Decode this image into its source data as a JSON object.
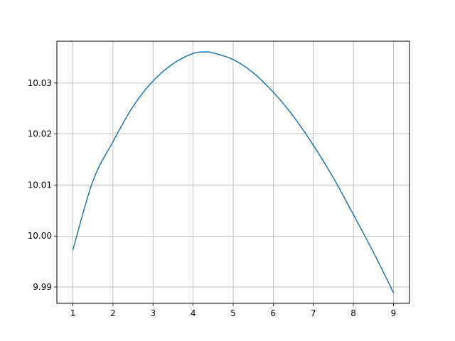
{
  "chart_data": {
    "type": "line",
    "title": "",
    "xlabel": "",
    "ylabel": "",
    "xlim": [
      0.6,
      9.4
    ],
    "ylim": [
      9.9868,
      10.0382
    ],
    "grid": true,
    "x_ticks": [
      1,
      2,
      3,
      4,
      5,
      6,
      7,
      8,
      9
    ],
    "x_tick_labels": [
      "1",
      "2",
      "3",
      "4",
      "5",
      "6",
      "7",
      "8",
      "9"
    ],
    "y_ticks": [
      9.99,
      10.0,
      10.01,
      10.02,
      10.03
    ],
    "y_tick_labels": [
      "9.99",
      "10.00",
      "10.01",
      "10.02",
      "10.03"
    ],
    "series": [
      {
        "color": "#1f77b4",
        "x": [
          1,
          1.5,
          2,
          2.5,
          3,
          3.5,
          4,
          4.3,
          4.5,
          5,
          5.5,
          6,
          6.5,
          7,
          7.5,
          8,
          8.5,
          9
        ],
        "y": [
          9.9973,
          10.0108,
          10.0185,
          10.0254,
          10.0304,
          10.0338,
          10.0358,
          10.0361,
          10.0359,
          10.0346,
          10.032,
          10.0282,
          10.0235,
          10.0178,
          10.0114,
          10.0042,
          9.9968,
          9.9889
        ]
      }
    ]
  }
}
